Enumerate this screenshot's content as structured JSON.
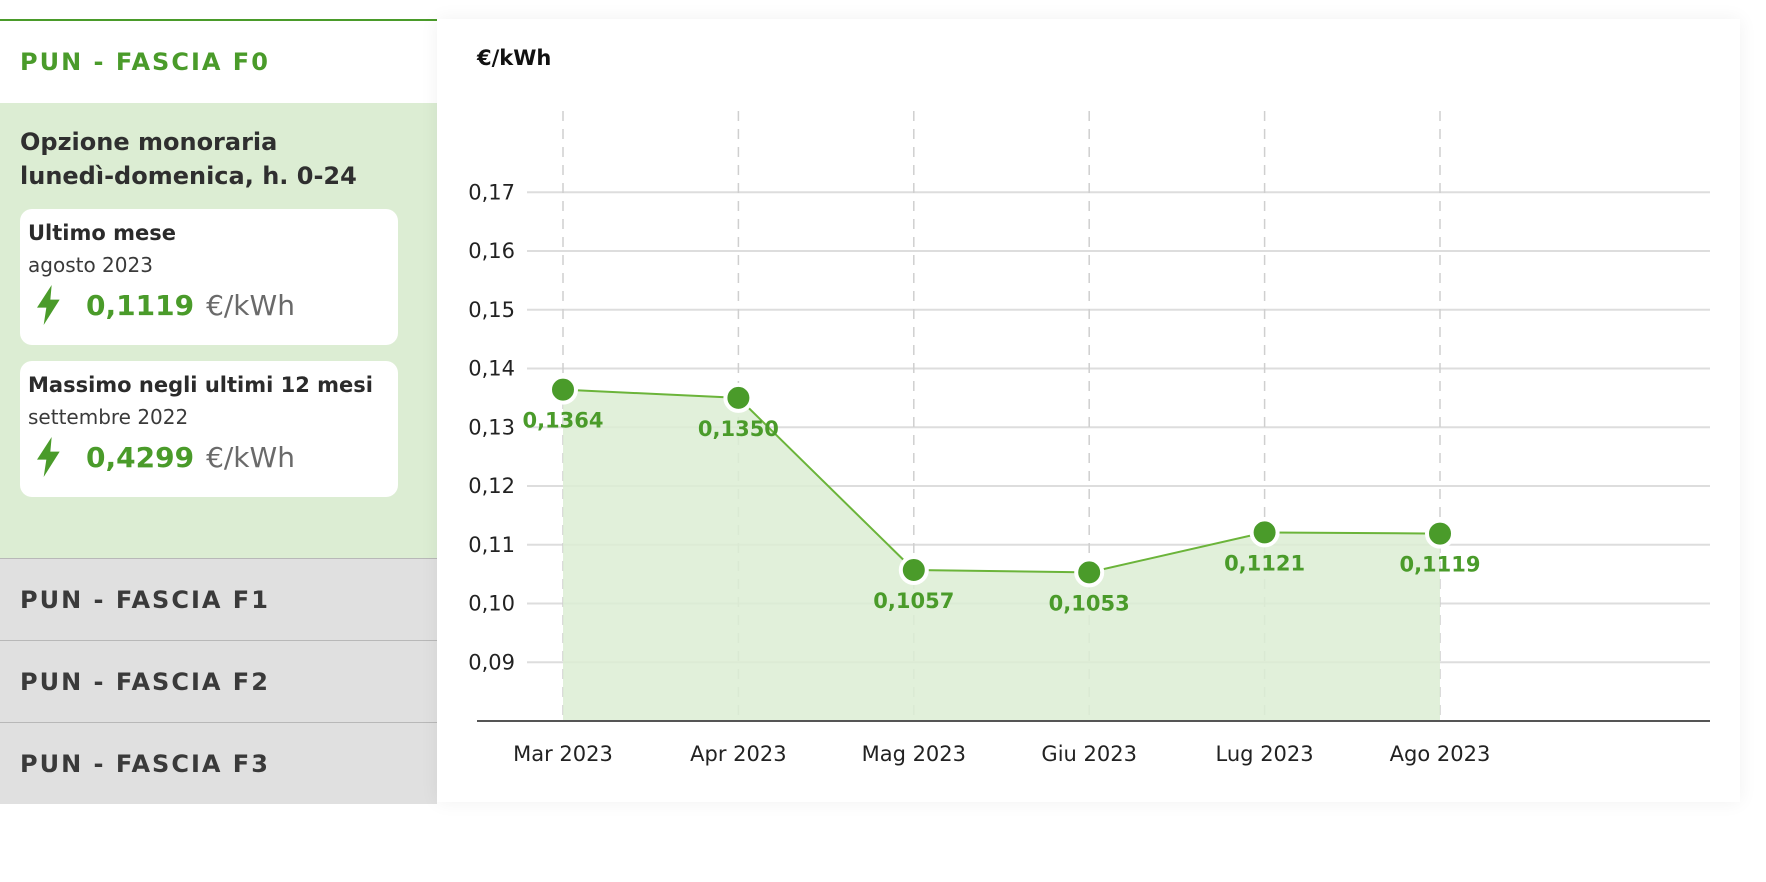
{
  "sidebar": {
    "active_tab": "PUN - FASCIA F0",
    "panel_title_line1": "Opzione monoraria",
    "panel_title_line2": "lunedì-domenica, h. 0-24",
    "cards": [
      {
        "title": "Ultimo mese",
        "period": "agosto 2023",
        "value": "0,1119",
        "unit": "€/kWh",
        "icon": "lightning-bolt-icon"
      },
      {
        "title": "Massimo negli ultimi 12 mesi",
        "period": "settembre 2022",
        "value": "0,4299",
        "unit": "€/kWh",
        "icon": "lightning-bolt-icon"
      }
    ],
    "tabs": [
      "PUN - FASCIA F1",
      "PUN - FASCIA F2",
      "PUN - FASCIA F3"
    ]
  },
  "colors": {
    "accent": "#4a9b2a",
    "panel_bg": "#dcedd3",
    "area_fill": "#dcedd3",
    "tab_inactive_bg": "#e0e0e0",
    "gridline": "#dddddd"
  },
  "chart_data": {
    "type": "area",
    "ylabel": "€/kWh",
    "categories": [
      "Mar 2023",
      "Apr 2023",
      "Mag 2023",
      "Giu 2023",
      "Lug 2023",
      "Ago 2023"
    ],
    "values": [
      0.1364,
      0.135,
      0.1057,
      0.1053,
      0.1121,
      0.1119
    ],
    "data_labels": [
      "0,1364",
      "0,1350",
      "0,1057",
      "0,1053",
      "0,1121",
      "0,1119"
    ],
    "yticks": [
      "0,09",
      "0,10",
      "0,11",
      "0,12",
      "0,13",
      "0,14",
      "0,15",
      "0,16",
      "0,17"
    ],
    "yticks_values": [
      0.09,
      0.1,
      0.11,
      0.12,
      0.13,
      0.14,
      0.15,
      0.16,
      0.17
    ],
    "ylim": [
      0.08,
      0.17
    ],
    "grid": true
  }
}
